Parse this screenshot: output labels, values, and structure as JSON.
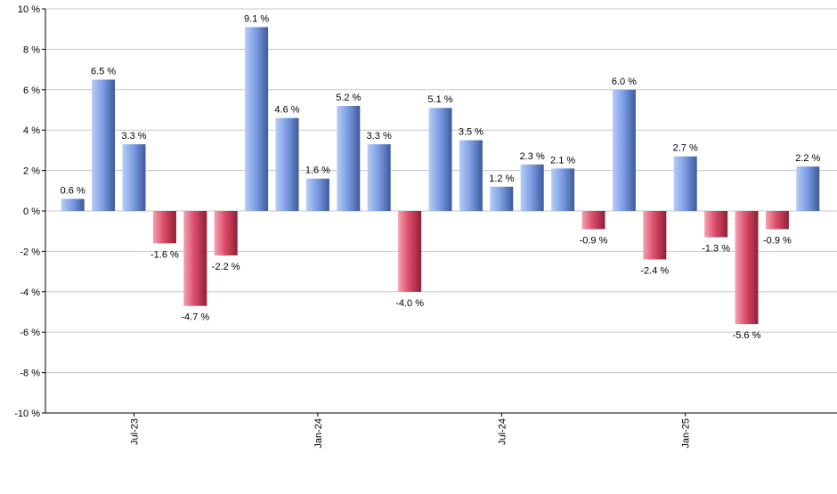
{
  "chart_data": {
    "type": "bar",
    "title": "",
    "xlabel": "",
    "ylabel": "",
    "ylim": [
      -10,
      10
    ],
    "yticks": [
      -10,
      -8,
      -6,
      -4,
      -2,
      0,
      2,
      4,
      6,
      8,
      10
    ],
    "y_tick_suffix": " %",
    "value_label_suffix": " %",
    "grid": true,
    "legend": "none",
    "x_tick_labels": [
      {
        "label": "Jul-23",
        "index": 2
      },
      {
        "label": "Jan-24",
        "index": 8
      },
      {
        "label": "Jul-24",
        "index": 14
      },
      {
        "label": "Jan-25",
        "index": 20
      }
    ],
    "values": [
      0.6,
      6.5,
      3.3,
      -1.6,
      -4.7,
      -2.2,
      9.1,
      4.6,
      1.6,
      5.2,
      3.3,
      -4.0,
      5.1,
      3.5,
      1.2,
      2.3,
      2.1,
      -0.9,
      6.0,
      -2.4,
      2.7,
      -1.3,
      -5.6,
      -0.9,
      2.2
    ],
    "colors": {
      "positive_light": "#b7cdf5",
      "positive_mid": "#7f9fe6",
      "positive_dark": "#3e5a9c",
      "negative_light": "#f4a3b2",
      "negative_mid": "#de4d6a",
      "negative_dark": "#8e1f36",
      "grid": "#c8c8c8",
      "axis": "#000000",
      "text": "#000000"
    }
  }
}
